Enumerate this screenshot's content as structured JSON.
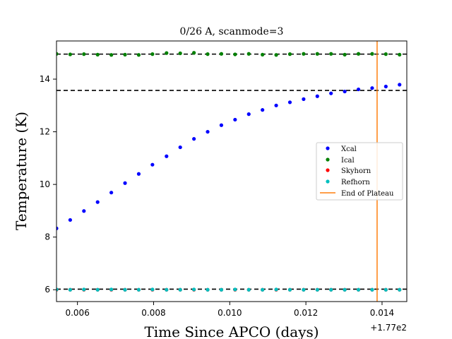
{
  "chart_data": {
    "type": "scatter",
    "title": "0/26 A, scanmode=3",
    "xlabel": "Time Since APCO (days)",
    "ylabel": "Temperature (K)",
    "x_offset_label": "+1.77e2",
    "xlim": [
      0.00545,
      0.01465
    ],
    "ylim": [
      5.55,
      15.45
    ],
    "x_ticks": [
      0.006,
      0.008,
      0.01,
      0.012,
      0.014
    ],
    "x_tick_labels": [
      "0.006",
      "0.008",
      "0.010",
      "0.012",
      "0.014"
    ],
    "y_ticks": [
      6,
      8,
      10,
      12,
      14
    ],
    "y_tick_labels": [
      "6",
      "8",
      "10",
      "12",
      "14"
    ],
    "grid": false,
    "legend_position": "center-right",
    "x": [
      0.00545,
      0.00581,
      0.00617,
      0.00653,
      0.00689,
      0.00725,
      0.00761,
      0.00797,
      0.00834,
      0.0087,
      0.00906,
      0.00942,
      0.00978,
      0.01014,
      0.0105,
      0.01086,
      0.01122,
      0.01158,
      0.01194,
      0.0123,
      0.01266,
      0.01302,
      0.01338,
      0.01374,
      0.0141,
      0.01446
    ],
    "series": [
      {
        "name": "Xcal",
        "color": "#0000ff",
        "marker": "dot",
        "values": [
          8.33,
          8.65,
          8.99,
          9.33,
          9.69,
          10.05,
          10.4,
          10.75,
          11.07,
          11.41,
          11.73,
          12.0,
          12.25,
          12.46,
          12.67,
          12.83,
          13.0,
          13.12,
          13.24,
          13.35,
          13.46,
          13.53,
          13.61,
          13.66,
          13.72,
          13.79
        ]
      },
      {
        "name": "Ical",
        "color": "#008000",
        "marker": "dot",
        "values": [
          14.96,
          14.94,
          14.95,
          14.93,
          14.92,
          14.93,
          14.92,
          14.95,
          14.99,
          14.98,
          15.0,
          14.95,
          14.96,
          14.94,
          14.96,
          14.93,
          14.92,
          14.95,
          14.96,
          14.96,
          14.96,
          14.93,
          14.96,
          14.96,
          14.95,
          14.93
        ]
      },
      {
        "name": "Skyhorn",
        "color": "#ff0000",
        "marker": "dot",
        "values": [
          6.0,
          6.0,
          6.0,
          6.0,
          6.0,
          6.0,
          6.0,
          6.0,
          6.0,
          6.0,
          6.0,
          6.0,
          6.0,
          6.0,
          6.0,
          6.0,
          6.0,
          6.0,
          6.0,
          6.0,
          6.0,
          6.0,
          6.0,
          6.0,
          6.0,
          6.0
        ]
      },
      {
        "name": "Refhorn",
        "color": "#00bfbf",
        "marker": "dot",
        "values": [
          6.01,
          6.0,
          6.01,
          6.0,
          6.01,
          6.0,
          6.0,
          6.01,
          6.0,
          6.0,
          6.01,
          6.0,
          6.0,
          6.01,
          6.0,
          6.0,
          6.01,
          6.0,
          6.0,
          6.0,
          6.0,
          6.0,
          6.0,
          6.0,
          6.0,
          6.0
        ]
      }
    ],
    "reference_lines": [
      {
        "type": "horizontal",
        "value": 14.95,
        "style": "dashed",
        "color": "#000000"
      },
      {
        "type": "horizontal",
        "value": 13.57,
        "style": "dashed",
        "color": "#000000"
      },
      {
        "type": "horizontal",
        "value": 6.02,
        "style": "dashed",
        "color": "#000000"
      },
      {
        "type": "vertical",
        "name": "End of Plateau",
        "value": 0.01387,
        "style": "solid",
        "color": "#ff7f0e"
      }
    ]
  }
}
